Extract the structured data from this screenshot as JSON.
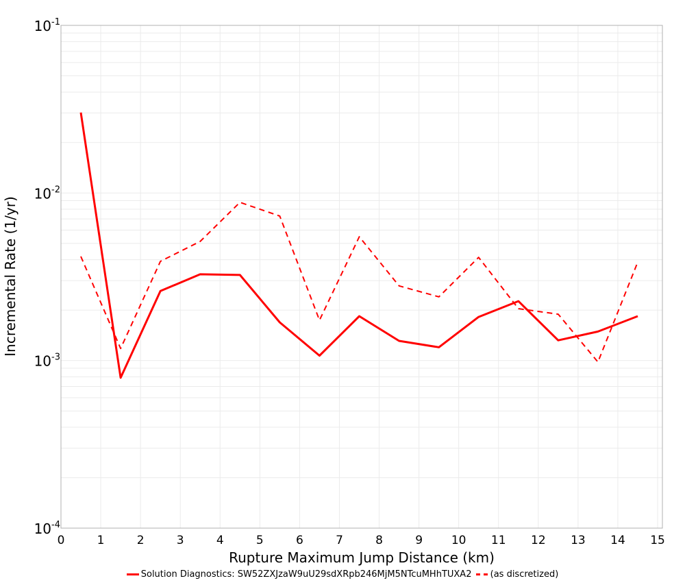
{
  "chart_data": {
    "type": "line",
    "title": "",
    "xlabel": "Rupture Maximum Jump Distance (km)",
    "ylabel": "Incremental Rate (1/yr)",
    "xlim": [
      0,
      15.12
    ],
    "ylim": [
      0.0001,
      0.1
    ],
    "yscale": "log",
    "grid": true,
    "legend_position": "bottom",
    "x_ticks": [
      0,
      1,
      2,
      3,
      4,
      5,
      6,
      7,
      8,
      9,
      10,
      11,
      12,
      13,
      14,
      15
    ],
    "y_ticks": [
      {
        "base": "10",
        "exp": "-1",
        "value": 0.1
      },
      {
        "base": "10",
        "exp": "-2",
        "value": 0.01
      },
      {
        "base": "10",
        "exp": "-3",
        "value": 0.001
      },
      {
        "base": "10",
        "exp": "-4",
        "value": 0.0001
      }
    ],
    "x": [
      0.5,
      1.5,
      2.5,
      3.5,
      4.5,
      5.5,
      6.5,
      7.5,
      8.5,
      9.5,
      10.5,
      11.5,
      12.5,
      13.5,
      14.5
    ],
    "series": [
      {
        "name": "Solution Diagnostics: SW52ZXJzaW9uU29sdXRpb246MjM5NTcuMHhTUXA2",
        "style": "solid",
        "color": "#ff0000",
        "values": [
          0.0302,
          0.00079,
          0.0026,
          0.00327,
          0.00324,
          0.00169,
          0.00107,
          0.00184,
          0.00131,
          0.0012,
          0.00182,
          0.00226,
          0.00132,
          0.00149,
          0.00184
        ]
      },
      {
        "name": "(as discretized)",
        "style": "dashed",
        "color": "#ff0000",
        "values": [
          0.00418,
          0.00118,
          0.00391,
          0.00514,
          0.00879,
          0.00728,
          0.00174,
          0.00548,
          0.00279,
          0.0024,
          0.00413,
          0.00204,
          0.00189,
          0.00098,
          0.00387
        ]
      }
    ]
  },
  "legend": {
    "items": [
      {
        "label": "Solution Diagnostics: SW52ZXJzaW9uU29sdXRpb246MjM5NTcuMHhTUXA2",
        "style": "solid"
      },
      {
        "label": "(as discretized)",
        "style": "dashed"
      }
    ]
  },
  "colors": {
    "series": "#ff0000",
    "grid": "#ebebeb",
    "frame": "#b0b0b0"
  }
}
